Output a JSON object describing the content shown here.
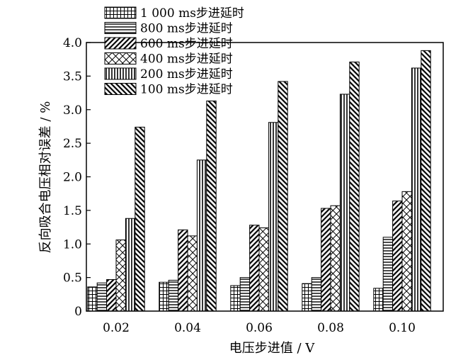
{
  "chart_data": {
    "type": "bar",
    "xlabel": "电压步进值 / V",
    "ylabel": "反向吸合电压相对误差 / %",
    "categories": [
      "0.02",
      "0.04",
      "0.06",
      "0.08",
      "0.10"
    ],
    "ylim": [
      0,
      4.0
    ],
    "yticks": [
      "0",
      "0.5",
      "1.0",
      "1.5",
      "2.0",
      "2.5",
      "3.0",
      "3.5",
      "4.0"
    ],
    "legend_position": "top-left",
    "grid": false,
    "series": [
      {
        "name": "1 000 ms步进延时",
        "pattern": "grid",
        "values": [
          0.36,
          0.43,
          0.38,
          0.41,
          0.34
        ]
      },
      {
        "name": "800 ms步进延时",
        "pattern": "hlines",
        "values": [
          0.42,
          0.46,
          0.5,
          0.5,
          1.1
        ]
      },
      {
        "name": "600 ms步进延时",
        "pattern": "backslash",
        "values": [
          0.47,
          1.21,
          1.28,
          1.53,
          1.64
        ]
      },
      {
        "name": "400 ms步进延时",
        "pattern": "crosshatch",
        "values": [
          1.06,
          1.12,
          1.24,
          1.57,
          1.78
        ]
      },
      {
        "name": "200 ms步进延时",
        "pattern": "vlines",
        "values": [
          1.38,
          2.25,
          2.81,
          3.23,
          3.62
        ]
      },
      {
        "name": "100 ms步进延时",
        "pattern": "slash",
        "values": [
          2.74,
          3.13,
          3.42,
          3.71,
          3.88
        ]
      }
    ]
  }
}
